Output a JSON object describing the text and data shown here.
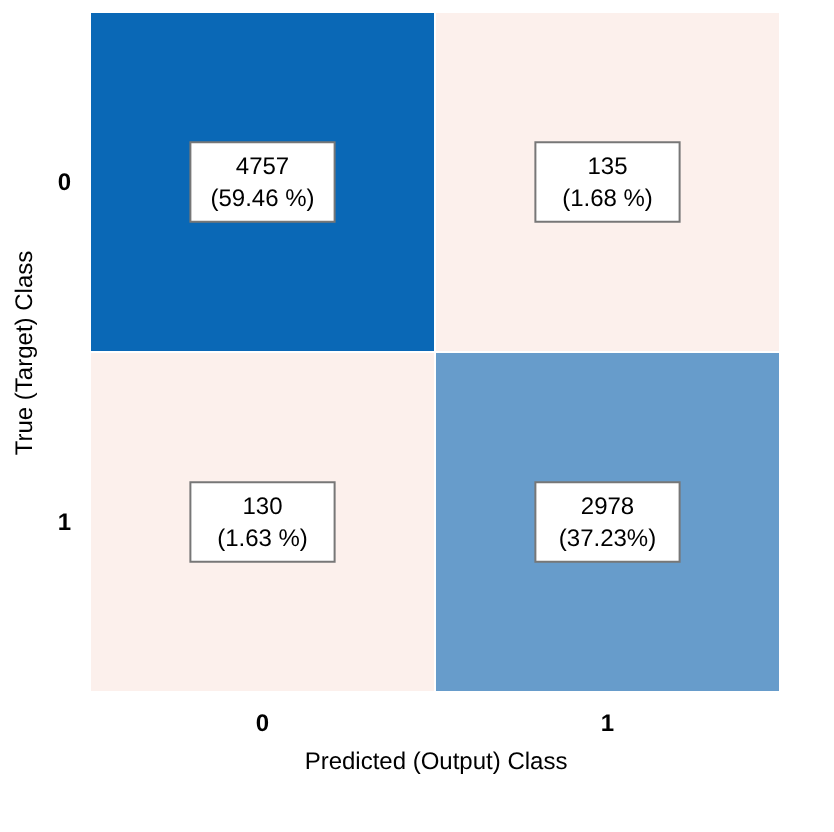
{
  "chart_data": {
    "type": "heatmap",
    "xlabel": "Predicted (Output) Class",
    "ylabel": "True (Target) Class",
    "categories": [
      "0",
      "1"
    ],
    "y_categories": [
      "0",
      "1"
    ],
    "cells": [
      [
        4757,
        135
      ],
      [
        130,
        2978
      ]
    ],
    "data_labels": true,
    "annotations": [
      "(59.46 %)",
      "(1.68 %)",
      "(1.63 %)",
      "(37.23%)"
    ],
    "grid": false
  }
}
